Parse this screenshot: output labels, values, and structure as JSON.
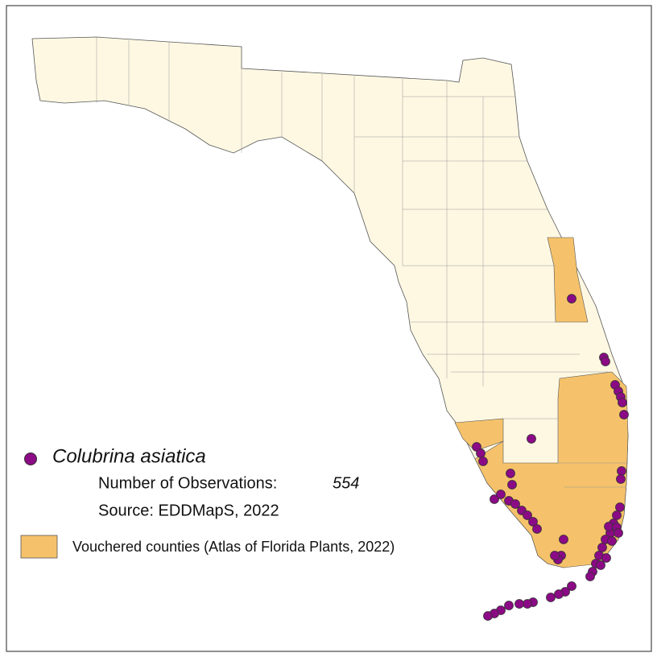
{
  "legend": {
    "species": "Colubrina asiatica",
    "observations_label": "Number of Observations:",
    "observations_count": 554,
    "source": "Source: EDDMapS, 2022",
    "vouchered_label": "Vouchered counties (Atlas of Florida Plants, 2022)"
  }
}
